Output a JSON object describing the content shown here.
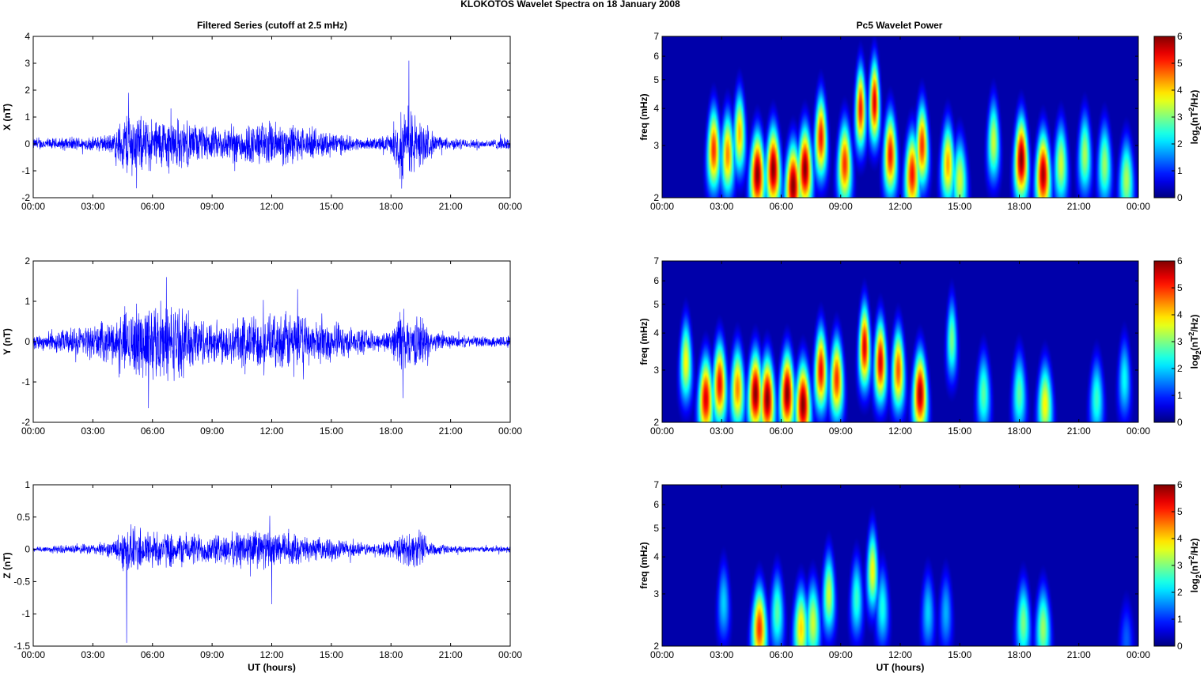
{
  "figure_title": "KLOKOTOS Wavelet Spectra on 18 January   2008",
  "left_column_title": "Filtered Series (cutoff at 2.5 mHz)",
  "right_column_title": "Pc5 Wavelet Power",
  "x_axis_label": "UT (hours)",
  "time_ticks": [
    "00:00",
    "03:00",
    "06:00",
    "09:00",
    "12:00",
    "15:00",
    "18:00",
    "21:00",
    "00:00"
  ],
  "freq_axis_label": "freq (mHz)",
  "freq_ticks": [
    "2",
    "3",
    "4",
    "5",
    "6",
    "7"
  ],
  "colorbar_label_parts": {
    "a": "log",
    "sub": "2",
    "b": "(nT",
    "sup": "2",
    "c": "/Hz)"
  },
  "colorbar_ticks": [
    "0",
    "1",
    "2",
    "3",
    "4",
    "5",
    "6"
  ],
  "colors": {
    "trace": "#0000ff",
    "axis": "#000000"
  },
  "colormap": "jet",
  "chart_data": [
    {
      "type": "line",
      "component": "X",
      "ylabel": "X (nT)",
      "xlabel": "UT (hours)",
      "ylim": [
        -2,
        4
      ],
      "yticks": [
        "-2",
        "-1",
        "0",
        "1",
        "2",
        "3",
        "4"
      ],
      "x_range_hours": [
        0,
        24
      ],
      "activity_envelope": {
        "x_hours": [
          0,
          1,
          2,
          3,
          4,
          4.8,
          5.2,
          6,
          7,
          8,
          9,
          10,
          11,
          12,
          13,
          14,
          15,
          16,
          17,
          18,
          18.5,
          19,
          19.5,
          20,
          20.5,
          21,
          22,
          23,
          24
        ],
        "amp_nT": [
          0.25,
          0.25,
          0.3,
          0.3,
          0.45,
          1.6,
          1.2,
          1.1,
          1.2,
          0.9,
          0.7,
          0.8,
          0.9,
          1.0,
          0.9,
          0.6,
          0.6,
          0.3,
          0.25,
          0.4,
          1.5,
          1.6,
          1.0,
          0.6,
          0.3,
          0.25,
          0.2,
          0.2,
          0.3
        ]
      },
      "peaks": [
        {
          "x_hours": 18.9,
          "y_nT": 3.1
        },
        {
          "x_hours": 4.8,
          "y_nT": 1.9
        },
        {
          "x_hours": 5.2,
          "y_nT": -1.65
        },
        {
          "x_hours": 18.6,
          "y_nT": -1.3
        }
      ]
    },
    {
      "type": "line",
      "component": "Y",
      "ylabel": "Y (nT)",
      "xlabel": "UT (hours)",
      "ylim": [
        -2,
        2
      ],
      "yticks": [
        "-2",
        "-1",
        "0",
        "1",
        "2"
      ],
      "x_range_hours": [
        0,
        24
      ],
      "activity_envelope": {
        "x_hours": [
          0,
          1,
          2,
          3,
          4,
          5,
          6,
          7,
          8,
          9,
          10,
          11,
          12,
          13,
          14,
          15,
          16,
          17,
          18,
          18.5,
          19,
          19.5,
          20,
          21,
          22,
          23,
          24
        ],
        "amp_nT": [
          0.2,
          0.3,
          0.4,
          0.5,
          0.6,
          1.0,
          1.1,
          1.1,
          0.8,
          0.6,
          0.7,
          0.8,
          0.7,
          0.9,
          0.6,
          0.6,
          0.4,
          0.3,
          0.3,
          1.0,
          0.6,
          0.8,
          0.3,
          0.2,
          0.15,
          0.15,
          0.2
        ]
      },
      "peaks": [
        {
          "x_hours": 6.7,
          "y_nT": 1.6
        },
        {
          "x_hours": 5.8,
          "y_nT": -1.65
        },
        {
          "x_hours": 18.6,
          "y_nT": -1.4
        },
        {
          "x_hours": 13.3,
          "y_nT": 1.3
        }
      ]
    },
    {
      "type": "line",
      "component": "Z",
      "ylabel": "Z (nT)",
      "xlabel": "UT (hours)",
      "ylim": [
        -1.5,
        1
      ],
      "yticks": [
        "-1.5",
        "-1",
        "-0.5",
        "0",
        "0.5",
        "1"
      ],
      "x_range_hours": [
        0,
        24
      ],
      "activity_envelope": {
        "x_hours": [
          0,
          1,
          2,
          3,
          4,
          4.6,
          5,
          6,
          7,
          8,
          9,
          10,
          11,
          12,
          13,
          14,
          15,
          16,
          17,
          18,
          18.8,
          19.5,
          20,
          21,
          22,
          23,
          24
        ],
        "amp_nT": [
          0.05,
          0.07,
          0.08,
          0.1,
          0.15,
          0.4,
          0.45,
          0.35,
          0.3,
          0.3,
          0.25,
          0.3,
          0.4,
          0.3,
          0.3,
          0.2,
          0.2,
          0.15,
          0.1,
          0.15,
          0.3,
          0.35,
          0.15,
          0.06,
          0.05,
          0.05,
          0.07
        ]
      },
      "peaks": [
        {
          "x_hours": 4.7,
          "y_nT": -1.45
        },
        {
          "x_hours": 11.9,
          "y_nT": 0.52
        },
        {
          "x_hours": 12.0,
          "y_nT": -0.85
        }
      ]
    },
    {
      "type": "heatmap",
      "component": "X",
      "title": "Pc5 Wavelet Power",
      "ylabel": "freq (mHz)",
      "x_range_hours": [
        0,
        24
      ],
      "ylim_mHz": [
        2,
        7
      ],
      "y_scale": "log",
      "clim": [
        0,
        6
      ],
      "bursts": [
        {
          "t": 2.6,
          "f": 2.9,
          "p": 5.0
        },
        {
          "t": 3.3,
          "f": 2.8,
          "p": 4.5
        },
        {
          "t": 3.9,
          "f": 3.3,
          "p": 4.2
        },
        {
          "t": 4.8,
          "f": 2.4,
          "p": 6.0
        },
        {
          "t": 5.6,
          "f": 2.5,
          "p": 6.0
        },
        {
          "t": 6.6,
          "f": 2.2,
          "p": 6.0
        },
        {
          "t": 7.2,
          "f": 2.5,
          "p": 6.0
        },
        {
          "t": 8.0,
          "f": 3.2,
          "p": 5.2
        },
        {
          "t": 9.2,
          "f": 2.6,
          "p": 5.0
        },
        {
          "t": 10.0,
          "f": 4.0,
          "p": 5.2
        },
        {
          "t": 10.7,
          "f": 4.2,
          "p": 5.5
        },
        {
          "t": 11.5,
          "f": 2.8,
          "p": 5.2
        },
        {
          "t": 12.6,
          "f": 2.4,
          "p": 5.2
        },
        {
          "t": 13.1,
          "f": 3.0,
          "p": 5.0
        },
        {
          "t": 14.4,
          "f": 2.6,
          "p": 4.3
        },
        {
          "t": 15.0,
          "f": 2.3,
          "p": 3.5
        },
        {
          "t": 16.7,
          "f": 3.1,
          "p": 3.5
        },
        {
          "t": 18.1,
          "f": 2.7,
          "p": 6.0
        },
        {
          "t": 19.2,
          "f": 2.4,
          "p": 5.8
        },
        {
          "t": 20.1,
          "f": 2.6,
          "p": 3.5
        },
        {
          "t": 21.3,
          "f": 2.8,
          "p": 3.3
        },
        {
          "t": 22.3,
          "f": 2.6,
          "p": 3.2
        },
        {
          "t": 23.4,
          "f": 2.3,
          "p": 3.3
        }
      ]
    },
    {
      "type": "heatmap",
      "component": "Y",
      "title": "",
      "ylabel": "freq (mHz)",
      "x_range_hours": [
        0,
        24
      ],
      "ylim_mHz": [
        2,
        7
      ],
      "y_scale": "log",
      "clim": [
        0,
        6
      ],
      "bursts": [
        {
          "t": 1.2,
          "f": 3.2,
          "p": 3.8
        },
        {
          "t": 2.2,
          "f": 2.4,
          "p": 5.5
        },
        {
          "t": 2.9,
          "f": 2.7,
          "p": 5.3
        },
        {
          "t": 3.8,
          "f": 2.6,
          "p": 4.5
        },
        {
          "t": 4.7,
          "f": 2.5,
          "p": 6.0
        },
        {
          "t": 5.3,
          "f": 2.4,
          "p": 6.0
        },
        {
          "t": 6.3,
          "f": 2.5,
          "p": 6.0
        },
        {
          "t": 7.1,
          "f": 2.3,
          "p": 6.0
        },
        {
          "t": 8.0,
          "f": 3.0,
          "p": 5.3
        },
        {
          "t": 8.8,
          "f": 2.8,
          "p": 5.0
        },
        {
          "t": 10.2,
          "f": 3.6,
          "p": 5.5
        },
        {
          "t": 11.0,
          "f": 3.2,
          "p": 5.5
        },
        {
          "t": 11.9,
          "f": 3.0,
          "p": 4.8
        },
        {
          "t": 13.0,
          "f": 2.5,
          "p": 5.8
        },
        {
          "t": 14.6,
          "f": 3.8,
          "p": 3.0
        },
        {
          "t": 16.2,
          "f": 2.5,
          "p": 2.8
        },
        {
          "t": 18.0,
          "f": 2.5,
          "p": 2.8
        },
        {
          "t": 19.3,
          "f": 2.3,
          "p": 3.8
        },
        {
          "t": 21.9,
          "f": 2.4,
          "p": 2.6
        },
        {
          "t": 23.3,
          "f": 2.8,
          "p": 2.3
        }
      ]
    },
    {
      "type": "heatmap",
      "component": "Z",
      "title": "",
      "ylabel": "freq (mHz)",
      "x_range_hours": [
        0,
        24
      ],
      "ylim_mHz": [
        2,
        7
      ],
      "y_scale": "log",
      "clim": [
        0,
        6
      ],
      "bursts": [
        {
          "t": 3.1,
          "f": 2.8,
          "p": 2.0
        },
        {
          "t": 4.9,
          "f": 2.3,
          "p": 5.0
        },
        {
          "t": 5.8,
          "f": 2.6,
          "p": 2.8
        },
        {
          "t": 7.0,
          "f": 2.3,
          "p": 4.0
        },
        {
          "t": 7.6,
          "f": 2.4,
          "p": 3.5
        },
        {
          "t": 8.4,
          "f": 3.0,
          "p": 3.5
        },
        {
          "t": 9.8,
          "f": 2.9,
          "p": 2.6
        },
        {
          "t": 10.6,
          "f": 3.6,
          "p": 3.8
        },
        {
          "t": 11.1,
          "f": 2.7,
          "p": 2.4
        },
        {
          "t": 13.4,
          "f": 2.6,
          "p": 2.0
        },
        {
          "t": 14.3,
          "f": 2.6,
          "p": 1.8
        },
        {
          "t": 18.2,
          "f": 2.4,
          "p": 3.0
        },
        {
          "t": 19.2,
          "f": 2.3,
          "p": 3.2
        },
        {
          "t": 23.4,
          "f": 2.1,
          "p": 1.3
        }
      ]
    }
  ]
}
